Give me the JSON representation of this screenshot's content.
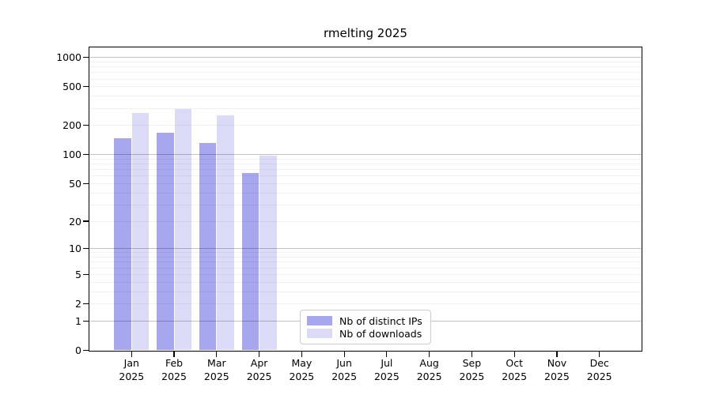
{
  "chart_data": {
    "type": "bar",
    "title": "rmelting 2025",
    "year_label": "2025",
    "categories": [
      "Jan",
      "Feb",
      "Mar",
      "Apr",
      "May",
      "Jun",
      "Jul",
      "Aug",
      "Sep",
      "Oct",
      "Nov",
      "Dec"
    ],
    "series": [
      {
        "name": "Nb of distinct IPs",
        "color": "#a7a7f0",
        "values": [
          149,
          170,
          132,
          64,
          0,
          0,
          0,
          0,
          0,
          0,
          0,
          0
        ]
      },
      {
        "name": "Nb of downloads",
        "color": "#dbdbf8",
        "values": [
          270,
          295,
          254,
          97,
          0,
          0,
          0,
          0,
          0,
          0,
          0,
          0
        ]
      }
    ],
    "y_scale": "log10(1+value)",
    "y_ticks": [
      0,
      1,
      2,
      5,
      10,
      20,
      50,
      100,
      200,
      500,
      1000
    ],
    "ylim": [
      0,
      1270
    ],
    "grid": "horizontal; major lines at 1, 10, 100, 1000; minor lines at 2-9 mantissa steps",
    "legend_position": "lower center",
    "colors": {
      "bar_distinct_ips": "#a7a7f0",
      "bar_downloads": "#dbdbf8",
      "major_grid": "#c3c3c3",
      "minor_grid": "#efefef",
      "axis": "#000000",
      "background": "#ffffff"
    }
  }
}
